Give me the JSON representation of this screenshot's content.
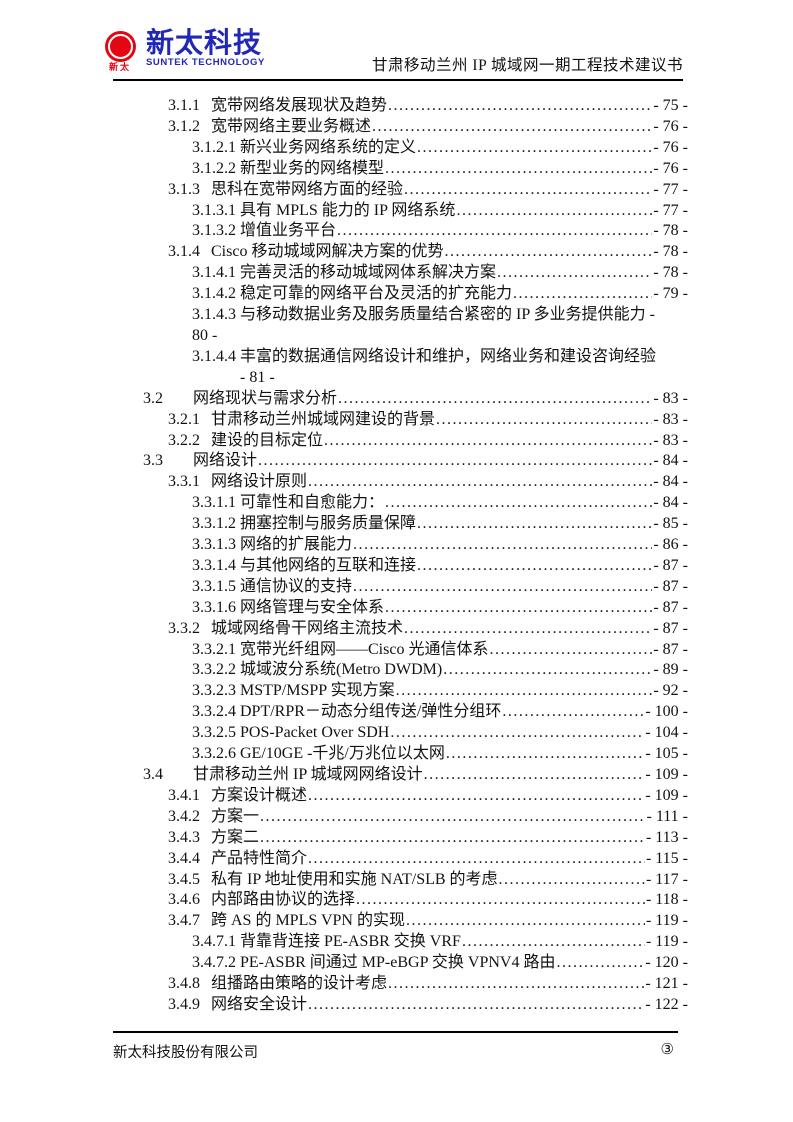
{
  "header": {
    "logo": {
      "cn": "新太科技",
      "en": "SUNTEK TECHNOLOGY",
      "mark_cn": "新太",
      "red": "#e30613",
      "blue": "#2128b5"
    },
    "doc_title": "甘肃移动兰州 IP 城域网一期工程技术建议书"
  },
  "toc": {
    "entries": [
      {
        "num": "3.1.1",
        "level": 3,
        "title": "宽带网络发展现状及趋势",
        "page": "- 75 -"
      },
      {
        "num": "3.1.2",
        "level": 3,
        "title": "宽带网络主要业务概述",
        "page": "- 76 -"
      },
      {
        "num": "3.1.2.1",
        "level": 4,
        "title": "新兴业务网络系统的定义",
        "page": "- 76 -"
      },
      {
        "num": "3.1.2.2",
        "level": 4,
        "title": "新型业务的网络模型",
        "page": "- 76 -"
      },
      {
        "num": "3.1.3",
        "level": 3,
        "title": "思科在宽带网络方面的经验",
        "page": "- 77 -"
      },
      {
        "num": "3.1.3.1",
        "level": 4,
        "title": "具有 MPLS 能力的 IP 网络系统",
        "page": "- 77 -"
      },
      {
        "num": "3.1.3.2",
        "level": 4,
        "title": "增值业务平台",
        "page": "- 78 -"
      },
      {
        "num": "3.1.4",
        "level": 3,
        "title": "Cisco 移动城域网解决方案的优势",
        "page": "- 78 -"
      },
      {
        "num": "3.1.4.1",
        "level": 4,
        "title": "完善灵活的移动城域网体系解决方案",
        "page": "- 78 -"
      },
      {
        "num": "3.1.4.2",
        "level": 4,
        "title": "稳定可靠的网络平台及灵活的扩充能力",
        "page": "- 79 -"
      },
      {
        "num": "3.1.4.3",
        "level": 4,
        "title": "与移动数据业务及服务质量结合紧密的 IP 多业务提供能力 -",
        "page": "80 -",
        "wrap": "num"
      },
      {
        "num": "3.1.4.4",
        "level": 4,
        "title": "丰富的数据通信网络设计和维护，网络业务和建设咨询经验",
        "page": "- 81 -",
        "wrap": "title"
      },
      {
        "num": "3.2",
        "level": 2,
        "title": "网络现状与需求分析",
        "page": "- 83 -"
      },
      {
        "num": "3.2.1",
        "level": 3,
        "title": "甘肃移动兰州城域网建设的背景",
        "page": "- 83 -"
      },
      {
        "num": "3.2.2",
        "level": 3,
        "title": "建设的目标定位",
        "page": "- 83 -"
      },
      {
        "num": "3.3",
        "level": 2,
        "title": "网络设计",
        "page": "- 84 -"
      },
      {
        "num": "3.3.1",
        "level": 3,
        "title": "网络设计原则",
        "page": "- 84 -"
      },
      {
        "num": "3.3.1.1",
        "level": 4,
        "title": "可靠性和自愈能力：",
        "page": "- 84 -"
      },
      {
        "num": "3.3.1.2",
        "level": 4,
        "title": "拥塞控制与服务质量保障",
        "page": "- 85 -"
      },
      {
        "num": "3.3.1.3",
        "level": 4,
        "title": "网络的扩展能力",
        "page": "- 86 -"
      },
      {
        "num": "3.3.1.4",
        "level": 4,
        "title": "与其他网络的互联和连接",
        "page": "- 87 -"
      },
      {
        "num": "3.3.1.5",
        "level": 4,
        "title": "通信协议的支持",
        "page": "- 87 -"
      },
      {
        "num": "3.3.1.6",
        "level": 4,
        "title": "网络管理与安全体系",
        "page": "- 87 -"
      },
      {
        "num": "3.3.2",
        "level": 3,
        "title": "城域网络骨干网络主流技术",
        "page": "- 87 -"
      },
      {
        "num": "3.3.2.1",
        "level": 4,
        "title": "宽带光纤组网——Cisco 光通信体系",
        "page": "- 87 -"
      },
      {
        "num": "3.3.2.2",
        "level": 4,
        "title": "城域波分系统(Metro DWDM)",
        "page": "- 89 -"
      },
      {
        "num": "3.3.2.3",
        "level": 4,
        "title": "MSTP/MSPP 实现方案",
        "page": "- 92 -"
      },
      {
        "num": "3.3.2.4",
        "level": 4,
        "title": "DPT/RPR－动态分组传送/弹性分组环",
        "page": "- 100 -"
      },
      {
        "num": "3.3.2.5",
        "level": 4,
        "title": "POS-Packet Over SDH",
        "page": "- 104 -"
      },
      {
        "num": "3.3.2.6",
        "level": 4,
        "title": "GE/10GE -千兆/万兆位以太网",
        "page": "- 105 -"
      },
      {
        "num": "3.4",
        "level": 2,
        "title": "甘肃移动兰州 IP 城域网网络设计",
        "page": "- 109 -"
      },
      {
        "num": "3.4.1",
        "level": 3,
        "title": "方案设计概述",
        "page": "- 109 -"
      },
      {
        "num": "3.4.2",
        "level": 3,
        "title": "方案一",
        "page": "- 111 -"
      },
      {
        "num": "3.4.3",
        "level": 3,
        "title": "方案二",
        "page": "- 113 -"
      },
      {
        "num": "3.4.4",
        "level": 3,
        "title": "产品特性简介",
        "page": "- 115 -"
      },
      {
        "num": "3.4.5",
        "level": 3,
        "title": "私有 IP 地址使用和实施 NAT/SLB 的考虑",
        "page": "- 117 -"
      },
      {
        "num": "3.4.6",
        "level": 3,
        "title": "内部路由协议的选择",
        "page": "- 118 -"
      },
      {
        "num": "3.4.7",
        "level": 3,
        "title": "跨 AS 的 MPLS VPN 的实现",
        "page": "- 119 -"
      },
      {
        "num": "3.4.7.1",
        "level": 4,
        "title": "背靠背连接 PE-ASBR 交换 VRF",
        "page": "- 119 -"
      },
      {
        "num": "3.4.7.2",
        "level": 4,
        "title": "PE-ASBR 间通过 MP-eBGP 交换 VPNV4 路由",
        "page": "- 120 -"
      },
      {
        "num": "3.4.8",
        "level": 3,
        "title": "组播路由策略的设计考虑",
        "page": "- 121 -"
      },
      {
        "num": "3.4.9",
        "level": 3,
        "title": "网络安全设计",
        "page": "- 122 -"
      }
    ]
  },
  "footer": {
    "company": "新太科技股份有限公司",
    "page_number": "③"
  }
}
